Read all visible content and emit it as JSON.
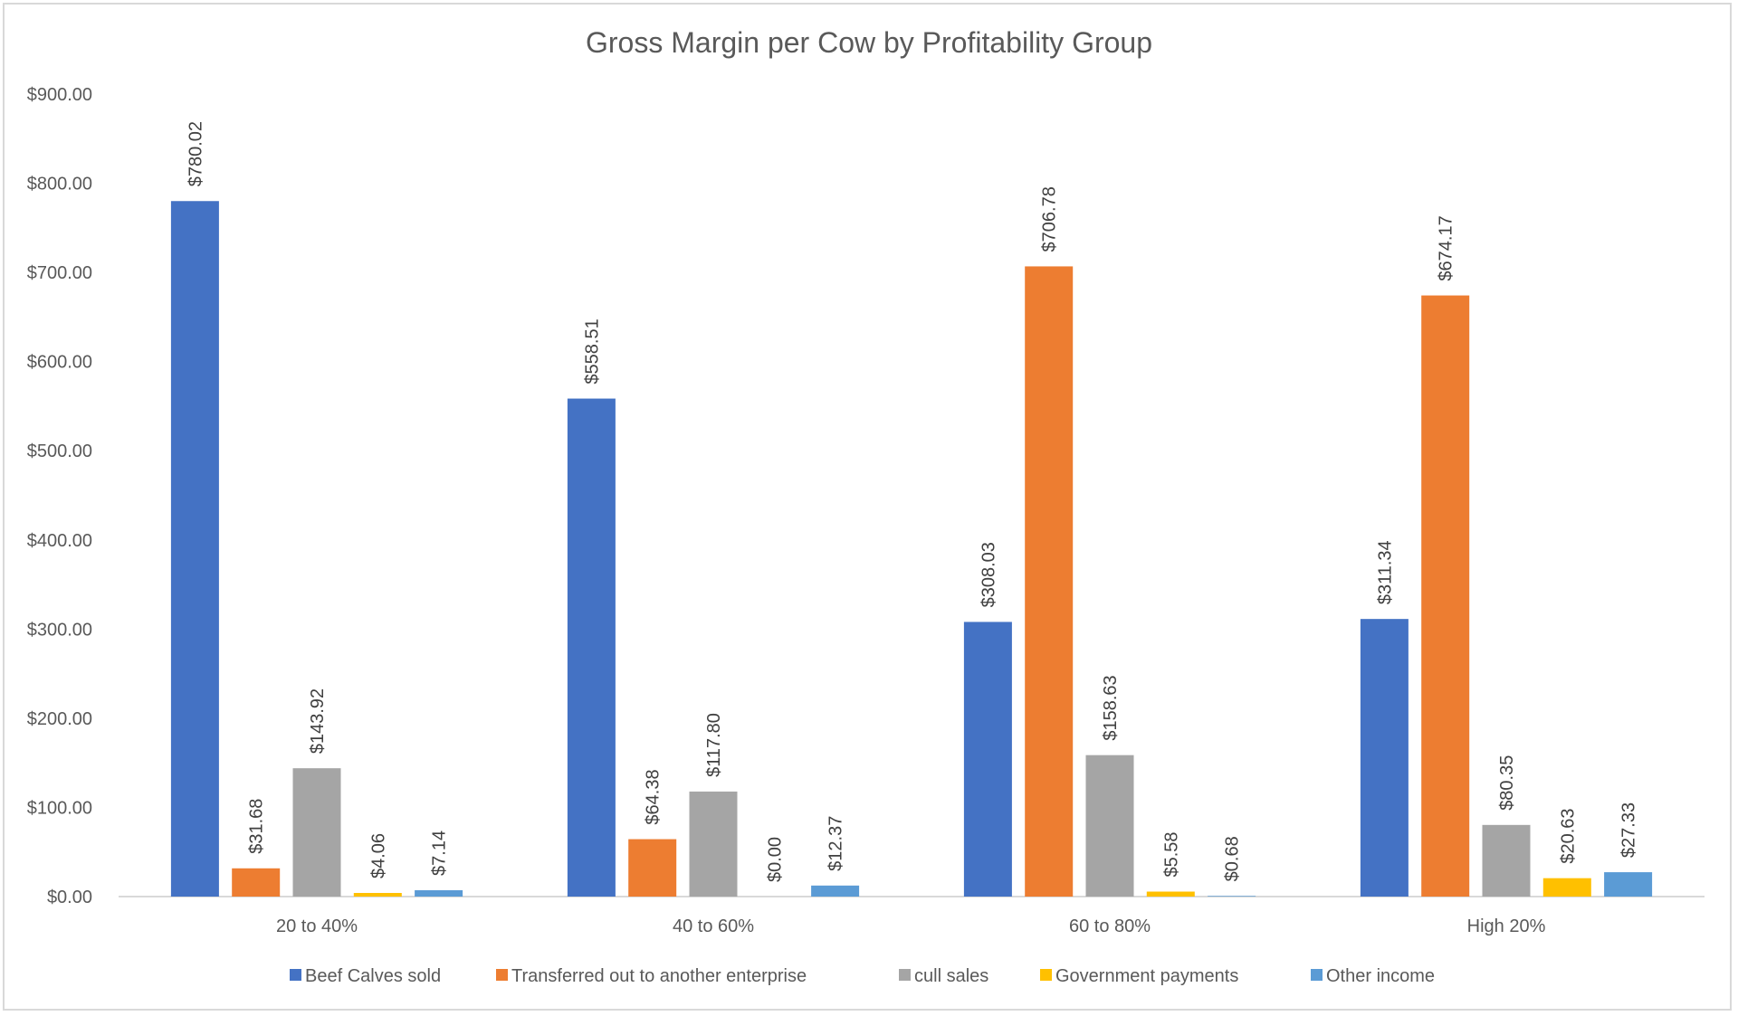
{
  "chart_data": {
    "type": "bar",
    "title": "Gross Margin per Cow by Profitability Group",
    "xlabel": "",
    "ylabel": "",
    "ylim": [
      0,
      900
    ],
    "ytick_step": 100,
    "yticks": [
      "$0.00",
      "$100.00",
      "$200.00",
      "$300.00",
      "$400.00",
      "$500.00",
      "$600.00",
      "$700.00",
      "$800.00",
      "$900.00"
    ],
    "grid": false,
    "legend_position": "bottom",
    "categories": [
      "20 to 40%",
      "40 to 60%",
      "60 to 80%",
      "High 20%"
    ],
    "series": [
      {
        "name": "Beef Calves sold",
        "color": "#4472C4",
        "values": [
          780.02,
          558.51,
          308.03,
          311.34
        ],
        "labels": [
          "$780.02",
          "$558.51",
          "$308.03",
          "$311.34"
        ]
      },
      {
        "name": "Transferred out to another enterprise",
        "color": "#ED7D31",
        "values": [
          31.68,
          64.38,
          706.78,
          674.17
        ],
        "labels": [
          "$31.68",
          "$64.38",
          "$706.78",
          "$674.17"
        ]
      },
      {
        "name": "cull sales",
        "color": "#A5A5A5",
        "values": [
          143.92,
          117.8,
          158.63,
          80.35
        ],
        "labels": [
          "$143.92",
          "$117.80",
          "$158.63",
          "$80.35"
        ]
      },
      {
        "name": "Government payments",
        "color": "#FFC000",
        "values": [
          4.06,
          0.0,
          5.58,
          20.63
        ],
        "labels": [
          "$4.06",
          "$0.00",
          "$5.58",
          "$20.63"
        ]
      },
      {
        "name": "Other income",
        "color": "#5B9BD5",
        "values": [
          7.14,
          12.37,
          0.68,
          27.33
        ],
        "labels": [
          "$7.14",
          "$12.37",
          "$0.68",
          "$27.33"
        ]
      }
    ]
  }
}
